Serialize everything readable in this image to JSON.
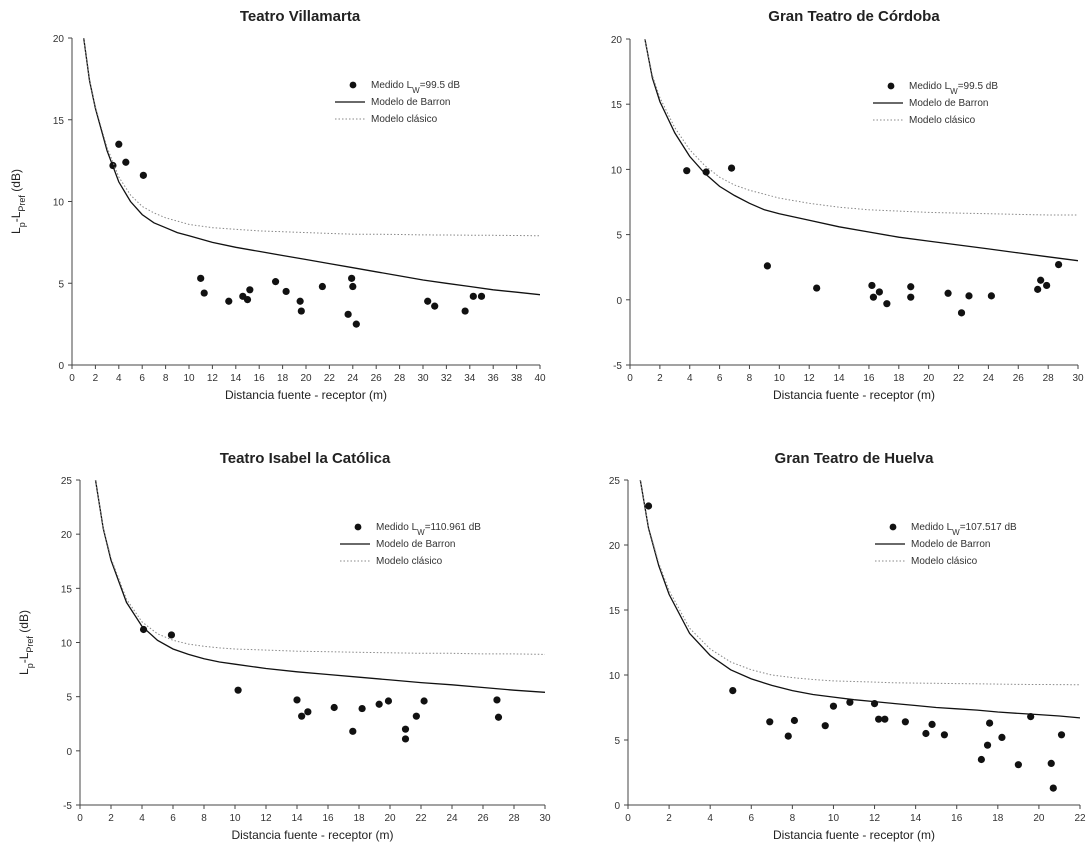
{
  "chart_data": [
    {
      "type": "scatter",
      "title": "Teatro Villamarta",
      "xlabel": "Distancia fuente - receptor (m)",
      "ylabel": {
        "main": "L",
        "sub1": "p",
        "mid": "-L",
        "sub2": "Pref",
        "tail": " (dB)"
      },
      "xlim": [
        0,
        40
      ],
      "xticks": [
        0,
        2,
        4,
        6,
        8,
        10,
        12,
        14,
        16,
        18,
        20,
        22,
        24,
        26,
        28,
        30,
        32,
        34,
        36,
        38,
        40
      ],
      "ylim": [
        0,
        20
      ],
      "yticks": [
        0,
        5,
        10,
        15,
        20
      ],
      "legend_position": "top-right",
      "series": [
        {
          "name": {
            "main": "Medido L",
            "sub": "W",
            "tail": "=99.5 dB"
          },
          "kind": "scatter",
          "points": [
            [
              3.5,
              12.2
            ],
            [
              4.0,
              13.5
            ],
            [
              4.6,
              12.4
            ],
            [
              6.1,
              11.6
            ],
            [
              11.0,
              5.3
            ],
            [
              11.3,
              4.4
            ],
            [
              13.4,
              3.9
            ],
            [
              14.6,
              4.2
            ],
            [
              15.0,
              4.0
            ],
            [
              15.2,
              4.6
            ],
            [
              17.4,
              5.1
            ],
            [
              18.3,
              4.5
            ],
            [
              19.5,
              3.9
            ],
            [
              19.6,
              3.3
            ],
            [
              21.4,
              4.8
            ],
            [
              23.6,
              3.1
            ],
            [
              23.9,
              5.3
            ],
            [
              24.0,
              4.8
            ],
            [
              24.3,
              2.5
            ],
            [
              30.4,
              3.9
            ],
            [
              31.0,
              3.6
            ],
            [
              33.6,
              3.3
            ],
            [
              34.3,
              4.2
            ],
            [
              35.0,
              4.2
            ]
          ]
        },
        {
          "name": "Modelo de Barron",
          "kind": "line",
          "x": [
            1,
            1.5,
            2,
            3,
            4,
            5,
            6,
            7,
            8,
            9,
            10,
            12,
            14,
            16,
            18,
            20,
            22,
            24,
            26,
            28,
            30,
            32,
            34,
            36,
            38,
            40
          ],
          "y": [
            20,
            17.4,
            15.7,
            13.1,
            11.2,
            10.0,
            9.2,
            8.7,
            8.4,
            8.1,
            7.9,
            7.5,
            7.2,
            6.95,
            6.7,
            6.45,
            6.2,
            5.95,
            5.7,
            5.45,
            5.2,
            5.0,
            4.8,
            4.6,
            4.45,
            4.3
          ]
        },
        {
          "name": "Modelo clásico",
          "kind": "dotted",
          "x": [
            1,
            1.5,
            2,
            3,
            4,
            5,
            6,
            7,
            8,
            9,
            10,
            12,
            14,
            16,
            18,
            20,
            22,
            24,
            26,
            28,
            30,
            32,
            34,
            36,
            38,
            40
          ],
          "y": [
            20,
            17.5,
            15.8,
            13.3,
            11.5,
            10.4,
            9.7,
            9.3,
            9.0,
            8.8,
            8.6,
            8.4,
            8.3,
            8.2,
            8.15,
            8.1,
            8.05,
            8.0,
            8.0,
            7.98,
            7.96,
            7.95,
            7.94,
            7.93,
            7.92,
            7.9
          ]
        }
      ]
    },
    {
      "type": "scatter",
      "title": "Gran Teatro de Córdoba",
      "xlabel": "Distancia fuente - receptor (m)",
      "ylabel": null,
      "xlim": [
        0,
        30
      ],
      "xticks": [
        0,
        2,
        4,
        6,
        8,
        10,
        12,
        14,
        16,
        18,
        20,
        22,
        24,
        26,
        28,
        30
      ],
      "ylim": [
        -5,
        20
      ],
      "yticks": [
        -5,
        0,
        5,
        10,
        15,
        20
      ],
      "legend_position": "top-right",
      "series": [
        {
          "name": {
            "main": "Medido L",
            "sub": "W",
            "tail": "=99.5 dB"
          },
          "kind": "scatter",
          "points": [
            [
              3.8,
              9.9
            ],
            [
              5.1,
              9.8
            ],
            [
              6.8,
              10.1
            ],
            [
              9.2,
              2.6
            ],
            [
              12.5,
              0.9
            ],
            [
              16.2,
              1.1
            ],
            [
              16.3,
              0.2
            ],
            [
              16.7,
              0.6
            ],
            [
              17.2,
              -0.3
            ],
            [
              18.8,
              1.0
            ],
            [
              18.8,
              0.2
            ],
            [
              21.3,
              0.5
            ],
            [
              22.2,
              -1.0
            ],
            [
              22.7,
              0.3
            ],
            [
              24.2,
              0.3
            ],
            [
              27.3,
              0.8
            ],
            [
              27.5,
              1.5
            ],
            [
              27.9,
              1.1
            ],
            [
              28.7,
              2.7
            ]
          ]
        },
        {
          "name": "Modelo de Barron",
          "kind": "line",
          "x": [
            1,
            1.5,
            2,
            3,
            4,
            5,
            6,
            7,
            8,
            9,
            10,
            12,
            14,
            16,
            18,
            20,
            22,
            24,
            26,
            28,
            30
          ],
          "y": [
            20,
            17.0,
            15.2,
            12.8,
            11.0,
            9.7,
            8.7,
            8.0,
            7.4,
            6.9,
            6.6,
            6.1,
            5.6,
            5.2,
            4.8,
            4.5,
            4.2,
            3.9,
            3.6,
            3.3,
            3.0
          ]
        },
        {
          "name": "Modelo clásico",
          "kind": "dotted",
          "x": [
            1,
            1.5,
            2,
            3,
            4,
            5,
            6,
            7,
            8,
            9,
            10,
            12,
            14,
            16,
            18,
            20,
            22,
            24,
            26,
            28,
            30
          ],
          "y": [
            20,
            17.2,
            15.5,
            13.2,
            11.5,
            10.3,
            9.4,
            8.8,
            8.4,
            8.1,
            7.8,
            7.4,
            7.1,
            6.9,
            6.8,
            6.7,
            6.65,
            6.6,
            6.55,
            6.5,
            6.5
          ]
        }
      ]
    },
    {
      "type": "scatter",
      "title": "Teatro Isabel la Católica",
      "xlabel": "Distancia fuente - receptor (m)",
      "ylabel": {
        "main": "L",
        "sub1": "p",
        "mid": "-L",
        "sub2": "Pref",
        "tail": " (dB)"
      },
      "xlim": [
        0,
        30
      ],
      "xticks": [
        0,
        2,
        4,
        6,
        8,
        10,
        12,
        14,
        16,
        18,
        20,
        22,
        24,
        26,
        28,
        30
      ],
      "ylim": [
        -5,
        25
      ],
      "yticks": [
        -5,
        0,
        5,
        10,
        15,
        20,
        25
      ],
      "legend_position": "top-right",
      "series": [
        {
          "name": {
            "main": "Medido L",
            "sub": "W",
            "tail": "=110.961 dB"
          },
          "kind": "scatter",
          "points": [
            [
              4.1,
              11.2
            ],
            [
              5.9,
              10.7
            ],
            [
              10.2,
              5.6
            ],
            [
              14.0,
              4.7
            ],
            [
              14.3,
              3.2
            ],
            [
              14.7,
              3.6
            ],
            [
              16.4,
              4.0
            ],
            [
              17.6,
              1.8
            ],
            [
              18.2,
              3.9
            ],
            [
              19.3,
              4.3
            ],
            [
              19.9,
              4.6
            ],
            [
              21.0,
              2.0
            ],
            [
              21.0,
              1.1
            ],
            [
              21.7,
              3.2
            ],
            [
              22.2,
              4.6
            ],
            [
              26.9,
              4.7
            ],
            [
              27.0,
              3.1
            ]
          ]
        },
        {
          "name": "Modelo de Barron",
          "kind": "line",
          "x": [
            1,
            1.5,
            2,
            3,
            4,
            5,
            6,
            7,
            8,
            9,
            10,
            12,
            14,
            16,
            18,
            20,
            22,
            24,
            26,
            28,
            30
          ],
          "y": [
            25,
            20.5,
            17.6,
            13.7,
            11.5,
            10.2,
            9.4,
            8.9,
            8.5,
            8.2,
            8.0,
            7.6,
            7.3,
            7.05,
            6.8,
            6.55,
            6.3,
            6.1,
            5.85,
            5.6,
            5.4
          ]
        },
        {
          "name": "Modelo clásico",
          "kind": "dotted",
          "x": [
            1,
            1.5,
            2,
            3,
            4,
            5,
            6,
            7,
            8,
            9,
            10,
            12,
            14,
            16,
            18,
            20,
            22,
            24,
            26,
            28,
            30
          ],
          "y": [
            25,
            20.6,
            17.8,
            14.0,
            11.9,
            10.8,
            10.2,
            9.85,
            9.65,
            9.5,
            9.4,
            9.3,
            9.2,
            9.15,
            9.1,
            9.05,
            9.0,
            9.0,
            8.95,
            8.95,
            8.9
          ]
        }
      ]
    },
    {
      "type": "scatter",
      "title": "Gran Teatro de Huelva",
      "xlabel": "Distancia fuente - receptor (m)",
      "ylabel": null,
      "xlim": [
        0,
        22
      ],
      "xticks": [
        0,
        2,
        4,
        6,
        8,
        10,
        12,
        14,
        16,
        18,
        20,
        22
      ],
      "ylim": [
        0,
        25
      ],
      "yticks": [
        0,
        5,
        10,
        15,
        20,
        25
      ],
      "legend_position": "top-right",
      "series": [
        {
          "name": {
            "main": "Medido L",
            "sub": "W",
            "tail": "=107.517 dB"
          },
          "kind": "scatter",
          "points": [
            [
              1.0,
              23.0
            ],
            [
              5.1,
              8.8
            ],
            [
              6.9,
              6.4
            ],
            [
              7.8,
              5.3
            ],
            [
              8.1,
              6.5
            ],
            [
              9.6,
              6.1
            ],
            [
              10.0,
              7.6
            ],
            [
              10.8,
              7.9
            ],
            [
              12.0,
              7.8
            ],
            [
              12.2,
              6.6
            ],
            [
              12.5,
              6.6
            ],
            [
              13.5,
              6.4
            ],
            [
              14.5,
              5.5
            ],
            [
              14.8,
              6.2
            ],
            [
              15.4,
              5.4
            ],
            [
              17.2,
              3.5
            ],
            [
              17.5,
              4.6
            ],
            [
              17.6,
              6.3
            ],
            [
              18.2,
              5.2
            ],
            [
              19.0,
              3.1
            ],
            [
              19.6,
              6.8
            ],
            [
              20.6,
              3.2
            ],
            [
              20.7,
              1.3
            ],
            [
              21.1,
              5.4
            ]
          ]
        },
        {
          "name": "Modelo de Barron",
          "kind": "line",
          "x": [
            0.6,
            1.0,
            1.5,
            2,
            3,
            4,
            5,
            6,
            7,
            8,
            9,
            10,
            11,
            12,
            13,
            14,
            15,
            16,
            17,
            18,
            19,
            20,
            21,
            22
          ],
          "y": [
            25,
            21.3,
            18.4,
            16.2,
            13.2,
            11.5,
            10.4,
            9.7,
            9.2,
            8.8,
            8.5,
            8.3,
            8.1,
            7.95,
            7.8,
            7.65,
            7.5,
            7.4,
            7.3,
            7.15,
            7.05,
            6.95,
            6.85,
            6.7
          ]
        },
        {
          "name": "Modelo clásico",
          "kind": "dotted",
          "x": [
            0.6,
            1.0,
            1.5,
            2,
            3,
            4,
            5,
            6,
            7,
            8,
            9,
            10,
            11,
            12,
            13,
            14,
            15,
            16,
            17,
            18,
            19,
            20,
            21,
            22
          ],
          "y": [
            25,
            21.4,
            18.6,
            16.5,
            13.6,
            12.0,
            11.0,
            10.4,
            10.0,
            9.8,
            9.65,
            9.55,
            9.5,
            9.45,
            9.4,
            9.38,
            9.36,
            9.34,
            9.32,
            9.3,
            9.28,
            9.27,
            9.26,
            9.25
          ]
        }
      ]
    }
  ]
}
